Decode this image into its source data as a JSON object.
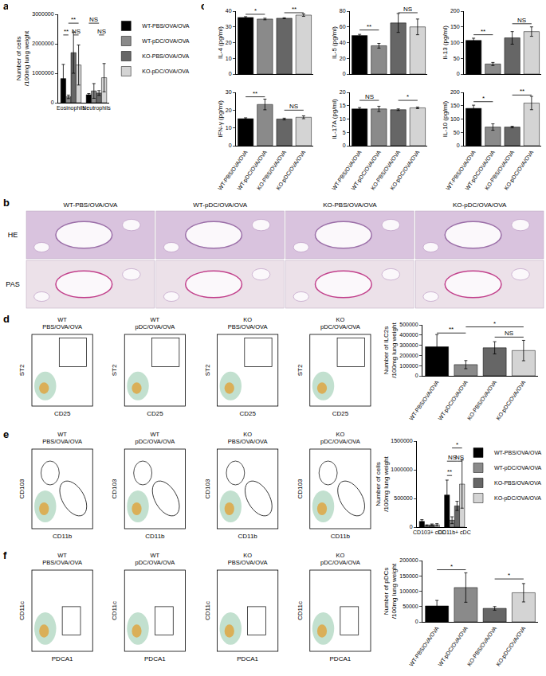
{
  "chart_data": [
    {
      "panel": "a",
      "type": "bar",
      "categories": [
        "Eosinophils",
        "Neutrophils"
      ],
      "y_label": "Number of cells\n/100mg lung weight",
      "ylim": [
        0,
        3000000
      ],
      "yticks": [
        0,
        1000000,
        2000000,
        3000000
      ],
      "grid": false,
      "legend": "right",
      "series": [
        {
          "name": "WT-PBS/OVA/OVA",
          "color": "#000000",
          "values": [
            820000,
            270000
          ],
          "errors": [
            480000,
            40000
          ]
        },
        {
          "name": "WT-pDC/OVA/OVA",
          "color": "#8a8a8a",
          "values": [
            200000,
            400000
          ],
          "errors": [
            60000,
            250000
          ]
        },
        {
          "name": "KO-PBS/OVA/OVA",
          "color": "#666666",
          "values": [
            1700000,
            330000
          ],
          "errors": [
            700000,
            80000
          ]
        },
        {
          "name": "KO-pDC/OVA/OVA",
          "color": "#d4d4d4",
          "values": [
            1280000,
            850000
          ],
          "errors": [
            680000,
            480000
          ]
        }
      ],
      "annotations": [
        {
          "text": "**",
          "category": 0,
          "from": 0,
          "to": 1,
          "y": 2300000
        },
        {
          "text": "**",
          "category": 0,
          "from": 1,
          "to": 3,
          "y": 2700000
        },
        {
          "text": "NS",
          "category": 0,
          "from": 2,
          "to": 3,
          "y": 2300000
        },
        {
          "text": "NS",
          "category": 1,
          "from": 0,
          "to": 2,
          "y": 2700000
        },
        {
          "text": "NS",
          "category": 1,
          "from": 2,
          "to": 3,
          "y": 2300000
        }
      ]
    },
    {
      "panel": "c",
      "type": "bar",
      "categories": [
        "WT-PBS/OVA/OVA",
        "WT-pDC/OVA/OVA",
        "KO-PBS/OVA/OVA",
        "KO-pDC/OVA/OVA"
      ],
      "colors": [
        "#000000",
        "#8a8a8a",
        "#666666",
        "#d4d4d4"
      ],
      "y_label": "IL-4 (pg/ml)",
      "ylim": [
        0,
        40
      ],
      "yticks": [
        0,
        10,
        20,
        30,
        40
      ],
      "grid": false,
      "tick_labels": "y",
      "values": [
        36,
        35,
        35.5,
        37.5
      ],
      "errors": [
        0.5,
        0.5,
        0.3,
        0.8
      ],
      "annotations": [
        {
          "text": "*",
          "from": 0,
          "to": 1,
          "y": 38
        },
        {
          "text": "**",
          "from": 2,
          "to": 3,
          "y": 39
        }
      ]
    },
    {
      "type": "bar",
      "categories": [
        "WT-PBS/OVA/OVA",
        "WT-pDC/OVA/OVA",
        "KO-PBS/OVA/OVA",
        "KO-pDC/OVA/OVA"
      ],
      "colors": [
        "#000000",
        "#8a8a8a",
        "#666666",
        "#d4d4d4"
      ],
      "y_label": "IL-5 (pg/ml)",
      "ylim": [
        0,
        80
      ],
      "yticks": [
        0,
        20,
        40,
        60,
        80
      ],
      "grid": false,
      "tick_labels": "y",
      "values": [
        49,
        36,
        65,
        60
      ],
      "errors": [
        1.5,
        3,
        12,
        10
      ],
      "annotations": [
        {
          "text": "**",
          "from": 0,
          "to": 1,
          "y": 56
        },
        {
          "text": "NS",
          "from": 2,
          "to": 3,
          "y": 78
        }
      ]
    },
    {
      "type": "bar",
      "categories": [
        "WT-PBS/OVA/OVA",
        "WT-pDC/OVA/OVA",
        "KO-PBS/OVA/OVA",
        "KO-pDC/OVA/OVA"
      ],
      "colors": [
        "#000000",
        "#8a8a8a",
        "#666666",
        "#d4d4d4"
      ],
      "y_label": "Il-13 (pg/ml)",
      "ylim": [
        0,
        200
      ],
      "yticks": [
        0,
        50,
        100,
        150,
        200
      ],
      "grid": false,
      "tick_labels": "y",
      "values": [
        107,
        32,
        115,
        135
      ],
      "errors": [
        7,
        5,
        20,
        15
      ],
      "annotations": [
        {
          "text": "**",
          "from": 0,
          "to": 1,
          "y": 125
        },
        {
          "text": "NS",
          "from": 2,
          "to": 3,
          "y": 160
        }
      ]
    },
    {
      "type": "bar",
      "categories": [
        "WT-PBS/OVA/OVA",
        "WT-pDC/OVA/OVA",
        "KO-PBS/OVA/OVA",
        "KO-pDC/OVA/OVA"
      ],
      "colors": [
        "#000000",
        "#8a8a8a",
        "#666666",
        "#d4d4d4"
      ],
      "y_label": "IFN-γ (pg/ml)",
      "ylim": [
        0,
        30
      ],
      "yticks": [
        0,
        10,
        20,
        30
      ],
      "grid": false,
      "values": [
        15.2,
        23.2,
        15,
        16
      ],
      "errors": [
        0.5,
        3,
        0.5,
        0.8
      ],
      "annotations": [
        {
          "text": "**",
          "from": 0,
          "to": 1,
          "y": 27.5
        },
        {
          "text": "NS",
          "from": 2,
          "to": 3,
          "y": 20
        }
      ]
    },
    {
      "type": "bar",
      "categories": [
        "WT-PBS/OVA/OVA",
        "WT-pDC/OVA/OVA",
        "KO-PBS/OVA/OVA",
        "KO-pDC/OVA/OVA"
      ],
      "colors": [
        "#000000",
        "#8a8a8a",
        "#666666",
        "#d4d4d4"
      ],
      "y_label": "IL-17A (pg/ml)",
      "ylim": [
        0,
        20
      ],
      "yticks": [
        0,
        5,
        10,
        15,
        20
      ],
      "grid": false,
      "values": [
        13.8,
        13.8,
        13.5,
        14.2
      ],
      "errors": [
        0.5,
        1,
        0.3,
        0.3
      ],
      "annotations": [
        {
          "text": "NS",
          "from": 0,
          "to": 1,
          "y": 17
        },
        {
          "text": "*",
          "from": 2,
          "to": 3,
          "y": 17
        }
      ]
    },
    {
      "type": "bar",
      "categories": [
        "WT-PBS/OVA/OVA",
        "WT-pDC/OVA/OVA",
        "KO-PBS/OVA/OVA",
        "KO-pDC/OVA/OVA"
      ],
      "colors": [
        "#000000",
        "#8a8a8a",
        "#666666",
        "#d4d4d4"
      ],
      "y_label": "IL-10 (pg/ml)",
      "ylim": [
        0,
        200
      ],
      "yticks": [
        0,
        50,
        100,
        150,
        200
      ],
      "grid": false,
      "values": [
        140,
        70,
        70,
        160
      ],
      "errors": [
        12,
        12,
        3,
        25
      ],
      "annotations": [
        {
          "text": "*",
          "from": 0,
          "to": 1,
          "y": 165
        },
        {
          "text": "**",
          "from": 2,
          "to": 3,
          "y": 190
        }
      ]
    },
    {
      "panel": "d",
      "type": "bar",
      "categories": [
        "WT-PBS/OVA/OVA",
        "WT-pDC/OVA/OVA",
        "KO-PBS/OVA/OVA",
        "KO-pDC/OVA/OVA"
      ],
      "colors": [
        "#000000",
        "#8a8a8a",
        "#666666",
        "#d4d4d4"
      ],
      "y_label": "Number of ILC2s\n/100mg lung weight",
      "ylim": [
        0,
        500000
      ],
      "yticks": [
        0,
        100000,
        200000,
        300000,
        400000,
        500000
      ],
      "grid": false,
      "values": [
        285000,
        110000,
        275000,
        248000
      ],
      "errors": [
        120000,
        40000,
        60000,
        100000
      ],
      "annotations": [
        {
          "text": "**",
          "from": 0,
          "to": 1,
          "y": 420000
        },
        {
          "text": "*",
          "from": 1,
          "to": 3,
          "y": 480000
        },
        {
          "text": "NS",
          "from": 2,
          "to": 3,
          "y": 380000
        }
      ]
    },
    {
      "panel": "e",
      "type": "bar",
      "categories": [
        "CD103+ cDC",
        "CD11b+ cDC"
      ],
      "y_label": "Number of cells\n/100mg lung weight",
      "ylim": [
        0,
        1500000
      ],
      "yticks": [
        0,
        500000,
        1000000,
        1500000
      ],
      "grid": false,
      "legend": "right",
      "series": [
        {
          "name": "WT-PBS/OVA/OVA",
          "color": "#000000",
          "values": [
            100000,
            560000
          ],
          "errors": [
            30000,
            260000
          ]
        },
        {
          "name": "WT-pDC/OVA/OVA",
          "color": "#8a8a8a",
          "values": [
            30000,
            120000
          ],
          "errors": [
            10000,
            60000
          ]
        },
        {
          "name": "KO-PBS/OVA/OVA",
          "color": "#666666",
          "values": [
            40000,
            370000
          ],
          "errors": [
            15000,
            80000
          ]
        },
        {
          "name": "KO-pDC/OVA/OVA",
          "color": "#d4d4d4",
          "values": [
            40000,
            750000
          ],
          "errors": [
            20000,
            420000
          ]
        }
      ],
      "annotations": [
        {
          "text": "**",
          "category": 1,
          "from": 0,
          "to": 1,
          "y": 900000
        },
        {
          "text": "NS",
          "category": 1,
          "from": 0,
          "to": 2,
          "y": 1150000
        },
        {
          "text": "NS",
          "category": 1,
          "from": 2,
          "to": 3,
          "y": 1150000
        },
        {
          "text": "*",
          "category": 1,
          "from": 1,
          "to": 3,
          "y": 1380000
        }
      ]
    },
    {
      "panel": "f",
      "type": "bar",
      "categories": [
        "WT-PBS/OVA/OVA",
        "WT-pDC/OVA/OVA",
        "KO-PBS/OVA/OVA",
        "KO-pDC/OVA/OVA"
      ],
      "colors": [
        "#000000",
        "#8a8a8a",
        "#666666",
        "#d4d4d4"
      ],
      "y_label": "Number of pDCs\n/100mg lung weight",
      "ylim": [
        0,
        200000
      ],
      "yticks": [
        0,
        50000,
        100000,
        150000,
        200000
      ],
      "grid": false,
      "values": [
        52000,
        112000,
        44000,
        95000
      ],
      "errors": [
        18000,
        48000,
        6000,
        30000
      ],
      "annotations": [
        {
          "text": "*",
          "from": 0,
          "to": 1,
          "y": 170000
        },
        {
          "text": "*",
          "from": 2,
          "to": 3,
          "y": 140000
        }
      ]
    }
  ],
  "histology": {
    "panel": "b",
    "columns": [
      "WT-PBS/OVA/OVA",
      "WT-pDC/OVA/OVA",
      "KO-PBS/OVA/OVA",
      "KO-pDC/OVA/OVA"
    ],
    "rows": [
      "HE",
      "PAS"
    ]
  },
  "flow": [
    {
      "panel": "d",
      "columns": [
        [
          "WT",
          "PBS/OVA/OVA"
        ],
        [
          "WT",
          "pDC/OVA/OVA"
        ],
        [
          "KO",
          "PBS/OVA/OVA"
        ],
        [
          "KO",
          "pDC/OVA/OVA"
        ]
      ],
      "x_label": "CD25",
      "y_label": "ST2"
    },
    {
      "panel": "e",
      "columns": [
        [
          "WT",
          "PBS/OVA/OVA"
        ],
        [
          "WT",
          "pDC/OVA/OVA"
        ],
        [
          "KO",
          "PBS/OVA/OVA"
        ],
        [
          "KO",
          "pDC/OVA/OVA"
        ]
      ],
      "x_label": "CD11b",
      "y_label": "CD103"
    },
    {
      "panel": "f",
      "columns": [
        [
          "WT",
          "PBS/OVA/OVA"
        ],
        [
          "WT",
          "pDC/OVA/OVA"
        ],
        [
          "KO",
          "PBS/OVA/OVA"
        ],
        [
          "KO",
          "pDC/OVA/OVA"
        ]
      ],
      "x_label": "PDCA1",
      "y_label": "CD11c"
    }
  ]
}
